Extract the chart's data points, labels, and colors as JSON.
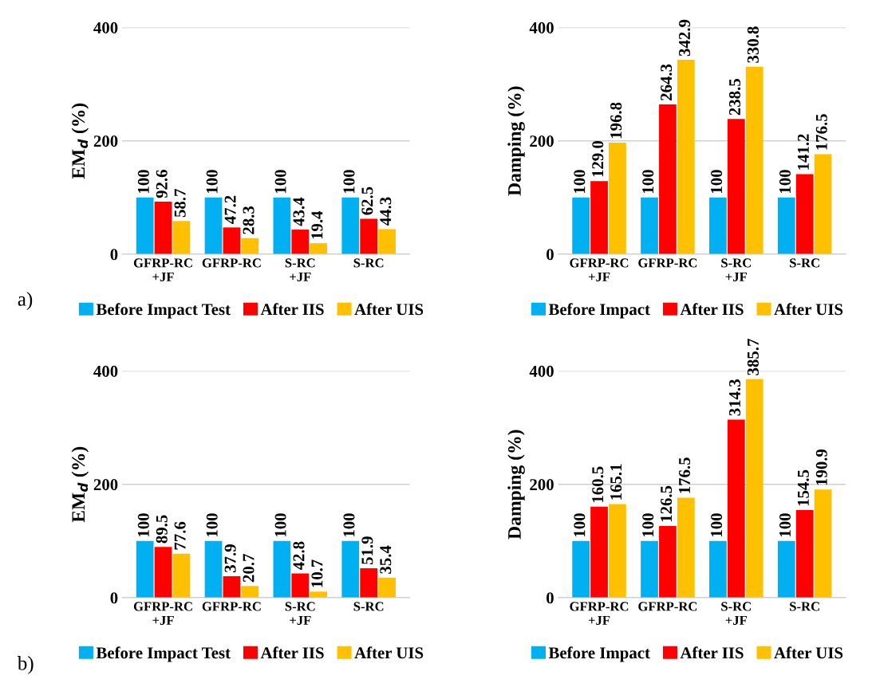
{
  "chart_data": [
    {
      "type": "bar",
      "ylabel": "EM$_{d}$ (%)",
      "categories": [
        "GFRP-RC\n+JF",
        "GFRP-RC",
        "S-RC\n+JF",
        "S-RC"
      ],
      "ylim": [
        0,
        400
      ],
      "yticks": [
        0,
        200,
        400
      ],
      "grid": "y",
      "legend": "bottom",
      "data_labels": true,
      "annotations": [
        "a)"
      ],
      "series": [
        {
          "name": "Before Impact Test",
          "color": "#00b0f0",
          "values": [
            100,
            100,
            100,
            100
          ]
        },
        {
          "name": "After IIS",
          "color": "#ff0000",
          "values": [
            92.6,
            47.2,
            43.4,
            62.5
          ]
        },
        {
          "name": "After UIS",
          "color": "#ffc000",
          "values": [
            58.7,
            28.3,
            19.4,
            44.3
          ]
        }
      ]
    },
    {
      "type": "bar",
      "ylabel": "Damping (%)",
      "categories": [
        "GFRP-RC\n+JF",
        "GFRP-RC",
        "S-RC\n+JF",
        "S-RC"
      ],
      "ylim": [
        0,
        400
      ],
      "yticks": [
        0,
        200,
        400
      ],
      "grid": "y",
      "legend": "bottom",
      "data_labels": true,
      "series": [
        {
          "name": "Before Impact",
          "color": "#00b0f0",
          "values": [
            100,
            100,
            100,
            100
          ]
        },
        {
          "name": "After IIS",
          "color": "#ff0000",
          "values": [
            129.0,
            264.3,
            238.5,
            141.2
          ],
          "value_labels": [
            "129.0",
            "264.3",
            "238.5",
            "141.2"
          ]
        },
        {
          "name": "After UIS",
          "color": "#ffc000",
          "values": [
            196.8,
            342.9,
            330.8,
            176.5
          ]
        }
      ]
    },
    {
      "type": "bar",
      "ylabel": "EM$_{d}$ (%)",
      "categories": [
        "GFRP-RC\n+JF",
        "GFRP-RC",
        "S-RC\n+JF",
        "S-RC"
      ],
      "ylim": [
        0,
        400
      ],
      "yticks": [
        0,
        200,
        400
      ],
      "grid": "y",
      "legend": "bottom",
      "data_labels": true,
      "annotations": [
        "b)"
      ],
      "series": [
        {
          "name": "Before Impact Test",
          "color": "#00b0f0",
          "values": [
            100,
            100,
            100,
            100
          ]
        },
        {
          "name": "After IIS",
          "color": "#ff0000",
          "values": [
            89.5,
            37.9,
            42.8,
            51.9
          ]
        },
        {
          "name": "After UIS",
          "color": "#ffc000",
          "values": [
            77.6,
            20.7,
            10.7,
            35.4
          ]
        }
      ]
    },
    {
      "type": "bar",
      "ylabel": "Damping (%)",
      "categories": [
        "GFRP-RC\n+JF",
        "GFRP-RC",
        "S-RC\n+JF",
        "S-RC"
      ],
      "ylim": [
        0,
        400
      ],
      "yticks": [
        0,
        200,
        400
      ],
      "grid": "y",
      "legend": "bottom",
      "data_labels": true,
      "series": [
        {
          "name": "Before Impact",
          "color": "#00b0f0",
          "values": [
            100,
            100,
            100,
            100
          ]
        },
        {
          "name": "After IIS",
          "color": "#ff0000",
          "values": [
            160.5,
            126.5,
            314.3,
            154.5
          ]
        },
        {
          "name": "After UIS",
          "color": "#ffc000",
          "values": [
            165.1,
            176.5,
            385.7,
            190.9
          ]
        }
      ]
    }
  ]
}
